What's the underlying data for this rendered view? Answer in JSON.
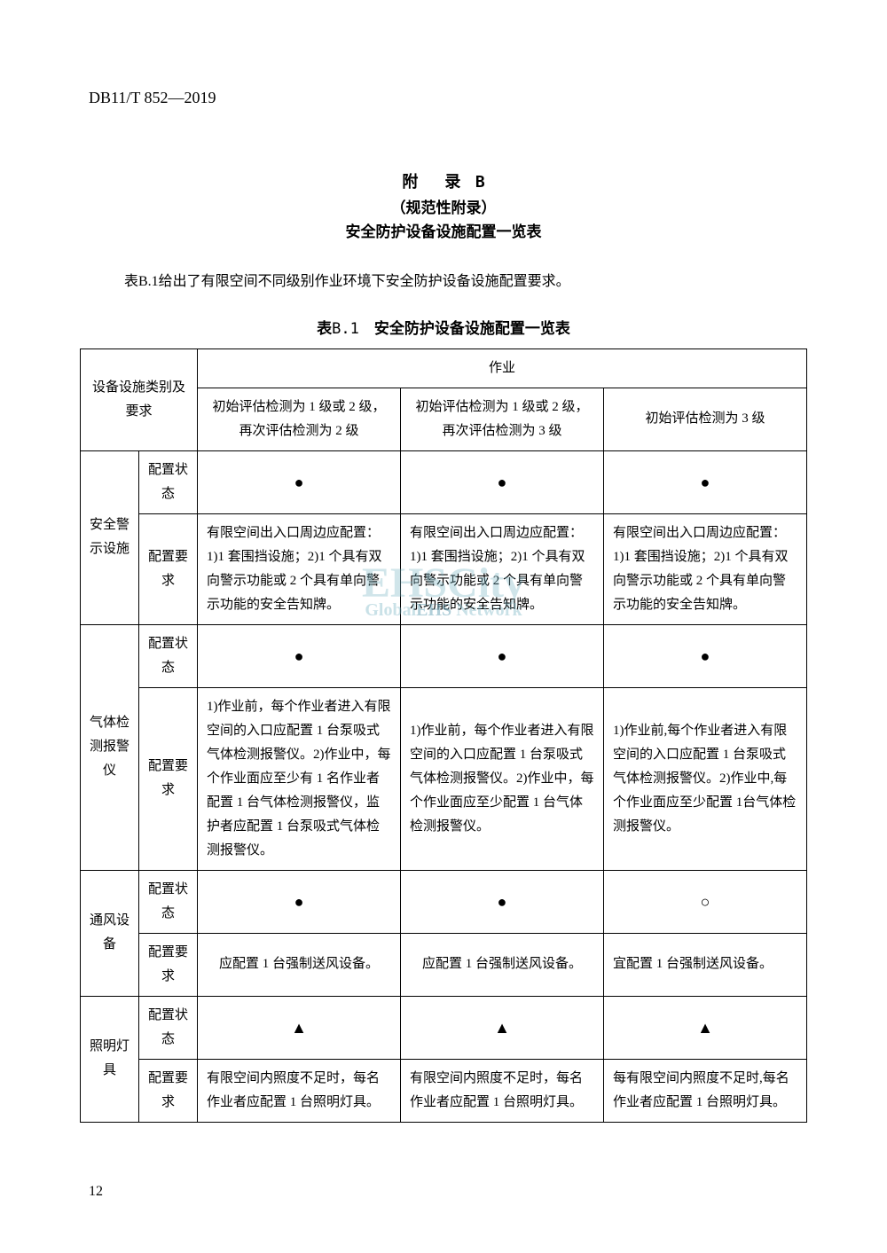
{
  "doc_code": "DB11/T 852—2019",
  "appendix": {
    "title_prefix": "附　录",
    "title_letter": "B",
    "subtitle1": "（规范性附录）",
    "subtitle2": "安全防护设备设施配置一览表"
  },
  "intro": "表B.1给出了有限空间不同级别作业环境下安全防护设备设施配置要求。",
  "table_caption_prefix": "表",
  "table_caption_num": "B.1",
  "table_caption_title": "安全防护设备设施配置一览表",
  "headers": {
    "category": "设备设施类别及要求",
    "operation": "作业",
    "col1": "初始评估检测为 1 级或 2 级，再次评估检测为 2 级",
    "col2": "初始评估检测为 1 级或 2 级，再次评估检测为 3 级",
    "col3": "初始评估检测为 3 级"
  },
  "sublabels": {
    "status": "配置状态",
    "requirement": "配置要求"
  },
  "symbols": {
    "filled_circle": "●",
    "open_circle": "○",
    "triangle": "▲"
  },
  "rows": {
    "safety_sign": {
      "name": "安全警示设施",
      "status": {
        "c1": "●",
        "c2": "●",
        "c3": "●"
      },
      "req": {
        "c1": "有限空间出入口周边应配置：1)1 套围挡设施；2)1 个具有双向警示功能或 2 个具有单向警示功能的安全告知牌。",
        "c2": "有限空间出入口周边应配置：1)1 套围挡设施；2)1 个具有双向警示功能或 2 个具有单向警示功能的安全告知牌。",
        "c3": "有限空间出入口周边应配置：1)1 套围挡设施；2)1 个具有双向警示功能或 2 个具有单向警示功能的安全告知牌。"
      }
    },
    "gas_detector": {
      "name": "气体检测报警仪",
      "status": {
        "c1": "●",
        "c2": "●",
        "c3": "●"
      },
      "req": {
        "c1": "1)作业前，每个作业者进入有限空间的入口应配置 1 台泵吸式气体检测报警仪。2)作业中，每个作业面应至少有 1 名作业者配置 1 台气体检测报警仪，监护者应配置 1 台泵吸式气体检测报警仪。",
        "c2": "1)作业前，每个作业者进入有限空间的入口应配置 1 台泵吸式气体检测报警仪。2)作业中，每个作业面应至少配置 1 台气体检测报警仪。",
        "c3": "1)作业前,每个作业者进入有限空间的入口应配置 1 台泵吸式气体检测报警仪。2)作业中,每个作业面应至少配置 1台气体检测报警仪。"
      }
    },
    "ventilation": {
      "name": "通风设备",
      "status": {
        "c1": "●",
        "c2": "●",
        "c3": "○"
      },
      "req": {
        "c1": "应配置 1 台强制送风设备。",
        "c2": "应配置 1 台强制送风设备。",
        "c3": "宜配置 1 台强制送风设备。"
      }
    },
    "lighting": {
      "name": "照明灯具",
      "status": {
        "c1": "▲",
        "c2": "▲",
        "c3": "▲"
      },
      "req": {
        "c1": "有限空间内照度不足时，每名作业者应配置 1 台照明灯具。",
        "c2": "有限空间内照度不足时，每名作业者应配置 1 台照明灯具。",
        "c3": "每有限空间内照度不足时,每名作业者应配置 1 台照明灯具。"
      }
    }
  },
  "watermark": {
    "main": "EHSCity",
    "sub_prefix": "Global",
    "sub_mid": "EHS",
    "sub_suffix": " Network"
  },
  "page_number": "12"
}
